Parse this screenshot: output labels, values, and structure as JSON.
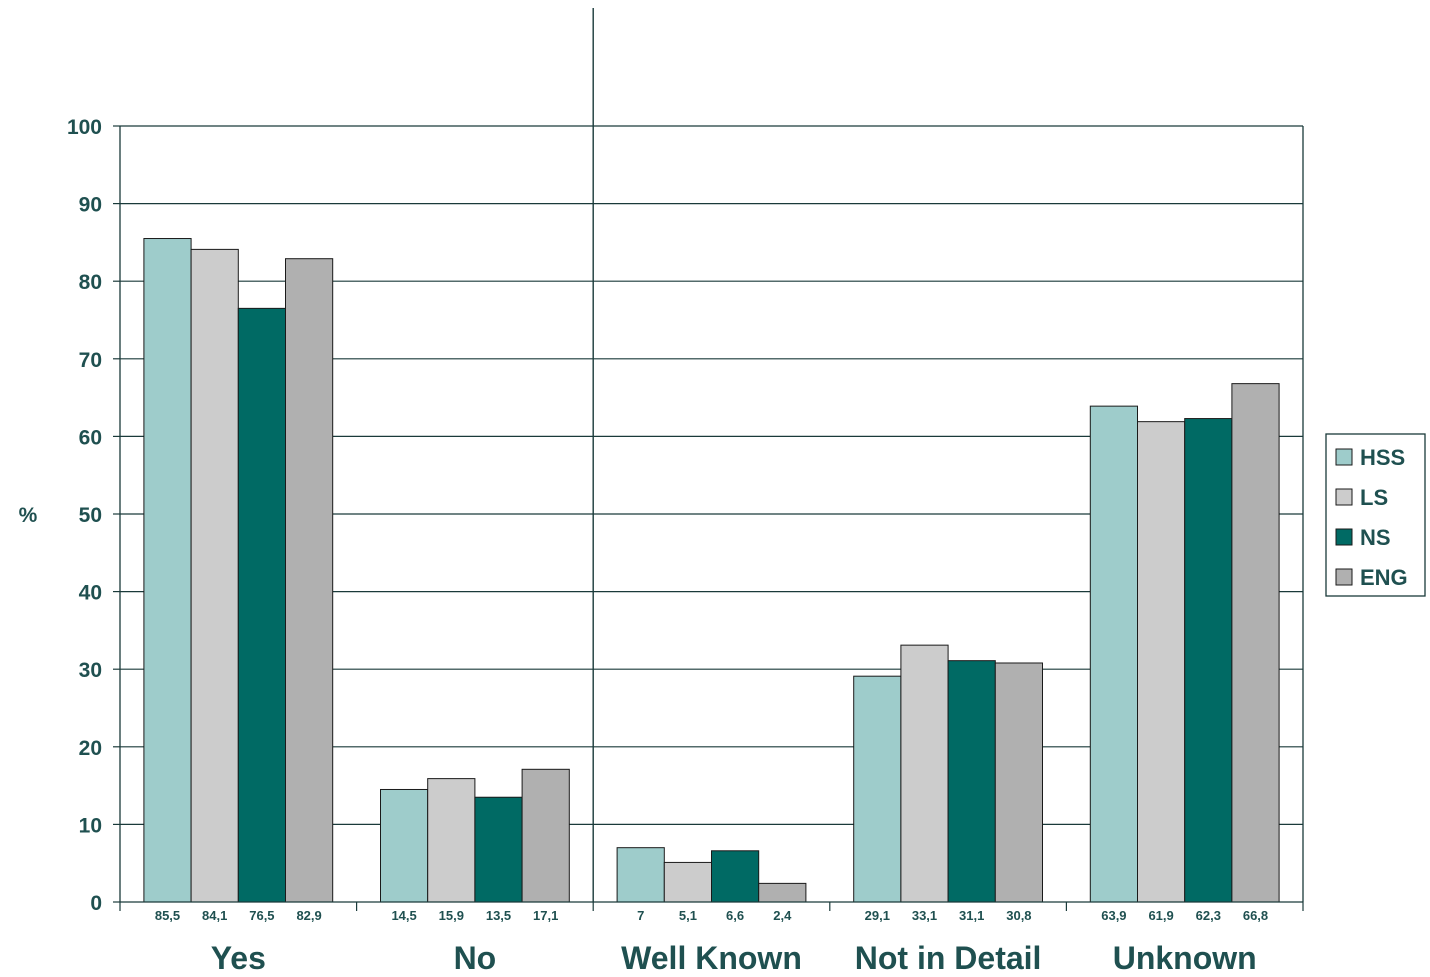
{
  "chart_data": {
    "type": "bar",
    "ylabel": "%",
    "ylim": [
      0,
      100
    ],
    "yticks": [
      0,
      10,
      20,
      30,
      40,
      50,
      60,
      70,
      80,
      90,
      100
    ],
    "grid": true,
    "legend_position": "right",
    "categories": [
      "Yes",
      "No",
      "Well Known",
      "Not in Detail",
      "Unknown"
    ],
    "series": [
      {
        "name": "HSS",
        "color": "#9ecccb",
        "values": [
          85.5,
          14.5,
          7,
          29.1,
          63.9
        ],
        "labels": [
          "85,5",
          "14,5",
          "7",
          "29,1",
          "63,9"
        ]
      },
      {
        "name": "LS",
        "color": "#cccccc",
        "values": [
          84.1,
          15.9,
          5.1,
          33.1,
          61.9
        ],
        "labels": [
          "84,1",
          "15,9",
          "5,1",
          "33,1",
          "61,9"
        ]
      },
      {
        "name": "NS",
        "color": "#006a64",
        "values": [
          76.5,
          13.5,
          6.6,
          31.1,
          62.3
        ],
        "labels": [
          "76,5",
          "13,5",
          "6,6",
          "31,1",
          "62,3"
        ]
      },
      {
        "name": "ENG",
        "color": "#b0b0b0",
        "values": [
          82.9,
          17.1,
          2.4,
          30.8,
          66.8
        ],
        "labels": [
          "82,9",
          "17,1",
          "2,4",
          "30,8",
          "66,8"
        ]
      }
    ]
  }
}
